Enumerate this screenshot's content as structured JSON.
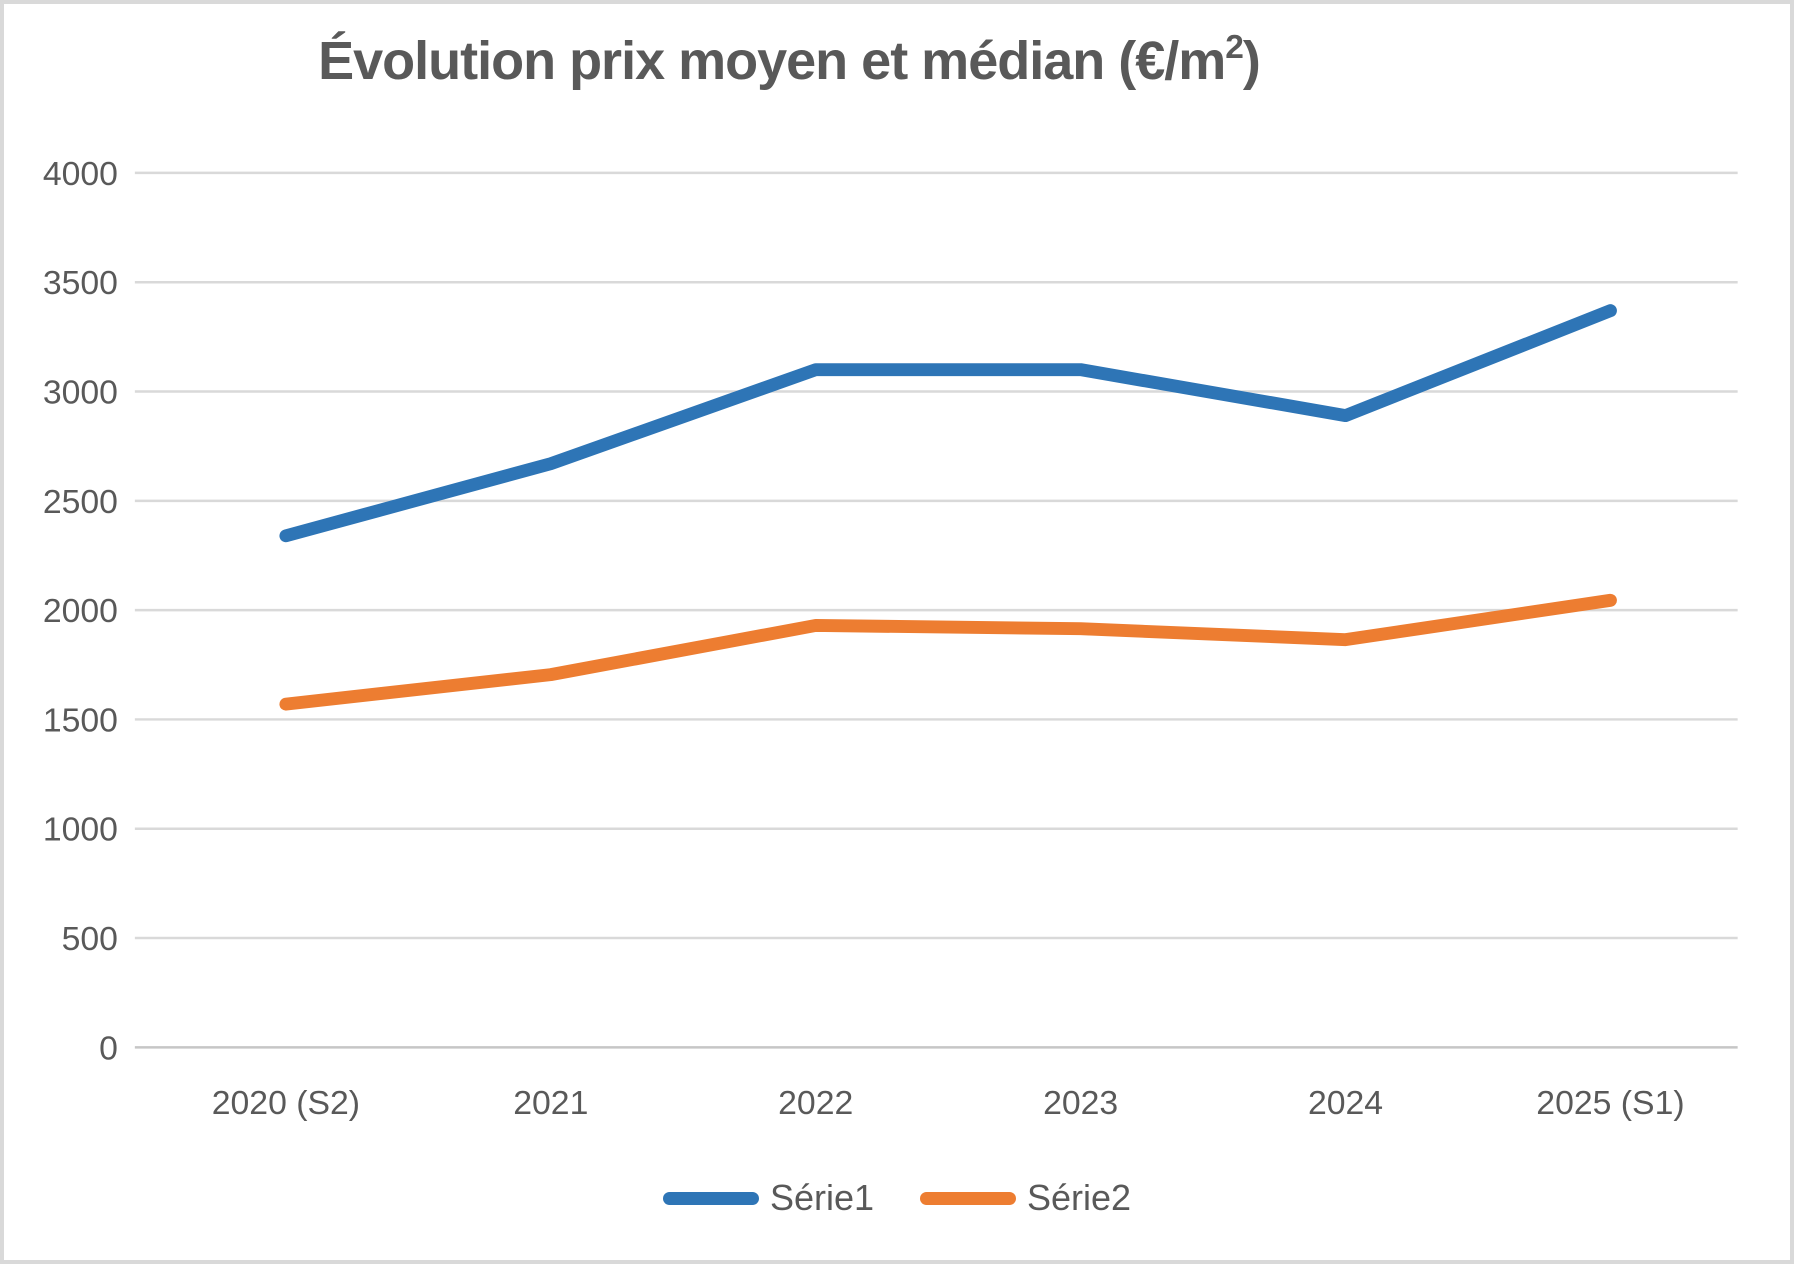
{
  "frame": {
    "background_color": "#ffffff",
    "border_color": "#d9d9d9"
  },
  "title": {
    "prefix": "Évolution prix moyen et médian (€/m",
    "sup": "2",
    "suffix": ")",
    "color": "#595959"
  },
  "chart_data": {
    "type": "line",
    "title": "Évolution prix moyen et médian (€/m²)",
    "categories": [
      "2020 (S2)",
      "2021",
      "2022",
      "2023",
      "2024",
      "2025 (S1)"
    ],
    "series": [
      {
        "name": "Série1",
        "color": "#2e75b6",
        "values": [
          2340,
          2670,
          3100,
          3100,
          2890,
          3370
        ]
      },
      {
        "name": "Série2",
        "color": "#ed7d31",
        "values": [
          1570,
          1705,
          1930,
          1915,
          1865,
          2045
        ]
      }
    ],
    "y_ticks": [
      0,
      500,
      1000,
      1500,
      2000,
      2500,
      3000,
      3500,
      4000
    ],
    "ylim": [
      0,
      4000
    ],
    "xlabel": "",
    "ylabel": "",
    "grid": true,
    "gridline_color": "#d9d9d9",
    "baseline_color": "#c6c6c6",
    "axis_label_color": "#595959",
    "legend_position": "bottom",
    "line_width": 13
  }
}
